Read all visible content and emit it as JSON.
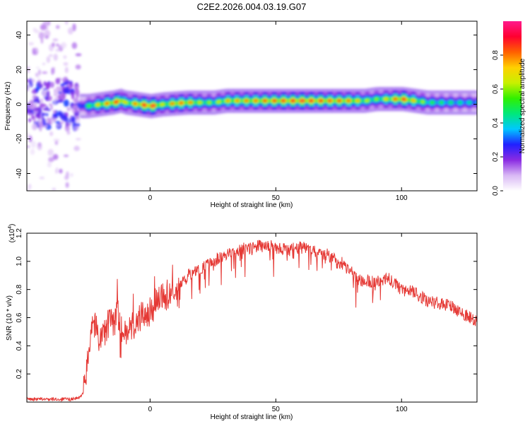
{
  "title": "C2E2.2026.004.03.19.G07",
  "chart_data": [
    {
      "type": "heatmap",
      "title": "C2E2.2026.004.03.19.G07",
      "xlabel": "Height of straight line (km)",
      "ylabel": "Frequency (Hz)",
      "xlim": [
        -49,
        130
      ],
      "ylim": [
        -50,
        48
      ],
      "xticks": [
        0,
        50,
        100
      ],
      "xtick_labels": [
        "0",
        "50",
        "100"
      ],
      "yticks": [
        -40,
        -20,
        0,
        20,
        40
      ],
      "ytick_labels": [
        "-40",
        "-20",
        "0",
        "20",
        "40"
      ],
      "colorbar": {
        "label": "Normalized spectral amplitude",
        "range": [
          0,
          1
        ],
        "ticks": [
          0.0,
          0.2,
          0.4,
          0.6,
          0.8
        ],
        "tick_labels": [
          "0.0",
          "0.2",
          "0.4",
          "0.6",
          "0.8"
        ],
        "colormap": [
          "#ffffff",
          "#d9b8f5",
          "#8a2be2",
          "#2020ff",
          "#00c8ff",
          "#00e87a",
          "#30f000",
          "#c8f000",
          "#ffd000",
          "#ff6000",
          "#ff0030",
          "#ff1a8c"
        ]
      },
      "noise_region": {
        "x_range": [
          -49,
          -28
        ],
        "freq_range": [
          -50,
          48
        ]
      },
      "ridge": {
        "x": [
          -28,
          -25,
          -20,
          -15,
          -12,
          -10,
          -5,
          0,
          5,
          10,
          15,
          20,
          25,
          30,
          40,
          50,
          60,
          70,
          80,
          85,
          90,
          95,
          100,
          110,
          120,
          130
        ],
        "freq": [
          -1,
          -1,
          0,
          1,
          2,
          1,
          0,
          -1,
          0,
          0.5,
          1,
          1,
          1,
          2,
          2,
          2,
          2,
          2,
          2,
          2,
          3,
          3,
          3,
          1,
          1,
          1
        ],
        "amplitude": [
          0.3,
          0.5,
          0.7,
          0.8,
          0.85,
          0.6,
          0.8,
          0.9,
          0.6,
          0.8,
          0.75,
          0.6,
          0.55,
          0.7,
          0.75,
          0.8,
          0.85,
          0.8,
          0.75,
          0.6,
          0.55,
          0.7,
          0.85,
          0.5,
          0.45,
          0.4
        ]
      }
    },
    {
      "type": "line",
      "xlabel": "Height of straight line (km)",
      "ylabel": "SNR (10 * v/v)",
      "y_multiplier": "(x10",
      "y_multiplier_exp": "4",
      "y_multiplier_close": ")",
      "xlim": [
        -49,
        130
      ],
      "ylim": [
        0,
        1.2
      ],
      "xticks": [
        0,
        50,
        100
      ],
      "xtick_labels": [
        "0",
        "50",
        "100"
      ],
      "yticks": [
        0.2,
        0.4,
        0.6,
        0.8,
        1.0,
        1.2
      ],
      "ytick_labels": [
        "0.2",
        "0.4",
        "0.6",
        "0.8",
        "1.0",
        "1.2"
      ],
      "line_color": "#e53935",
      "series": [
        {
          "name": "SNR",
          "x": [
            -49,
            -40,
            -32,
            -28,
            -26,
            -25,
            -24,
            -23,
            -22,
            -20,
            -18,
            -16,
            -14,
            -13,
            -12,
            -10,
            -8,
            -6,
            -4,
            -2,
            0,
            2,
            4,
            6,
            8,
            9,
            10,
            12,
            15,
            20,
            25,
            30,
            35,
            40,
            45,
            50,
            55,
            60,
            65,
            70,
            75,
            80,
            82,
            85,
            90,
            95,
            100,
            105,
            110,
            115,
            120,
            125,
            130
          ],
          "y": [
            0.02,
            0.02,
            0.02,
            0.03,
            0.1,
            0.25,
            0.45,
            0.6,
            0.55,
            0.45,
            0.5,
            0.58,
            0.55,
            0.7,
            0.52,
            0.5,
            0.55,
            0.56,
            0.6,
            0.62,
            0.63,
            0.7,
            0.72,
            0.75,
            0.78,
            0.85,
            0.72,
            0.82,
            0.9,
            0.95,
            1.0,
            1.05,
            1.08,
            1.1,
            1.12,
            1.1,
            1.08,
            1.1,
            1.08,
            1.05,
            1.0,
            0.95,
            0.88,
            0.86,
            0.85,
            0.88,
            0.8,
            0.78,
            0.72,
            0.7,
            0.68,
            0.62,
            0.57
          ]
        }
      ]
    }
  ]
}
